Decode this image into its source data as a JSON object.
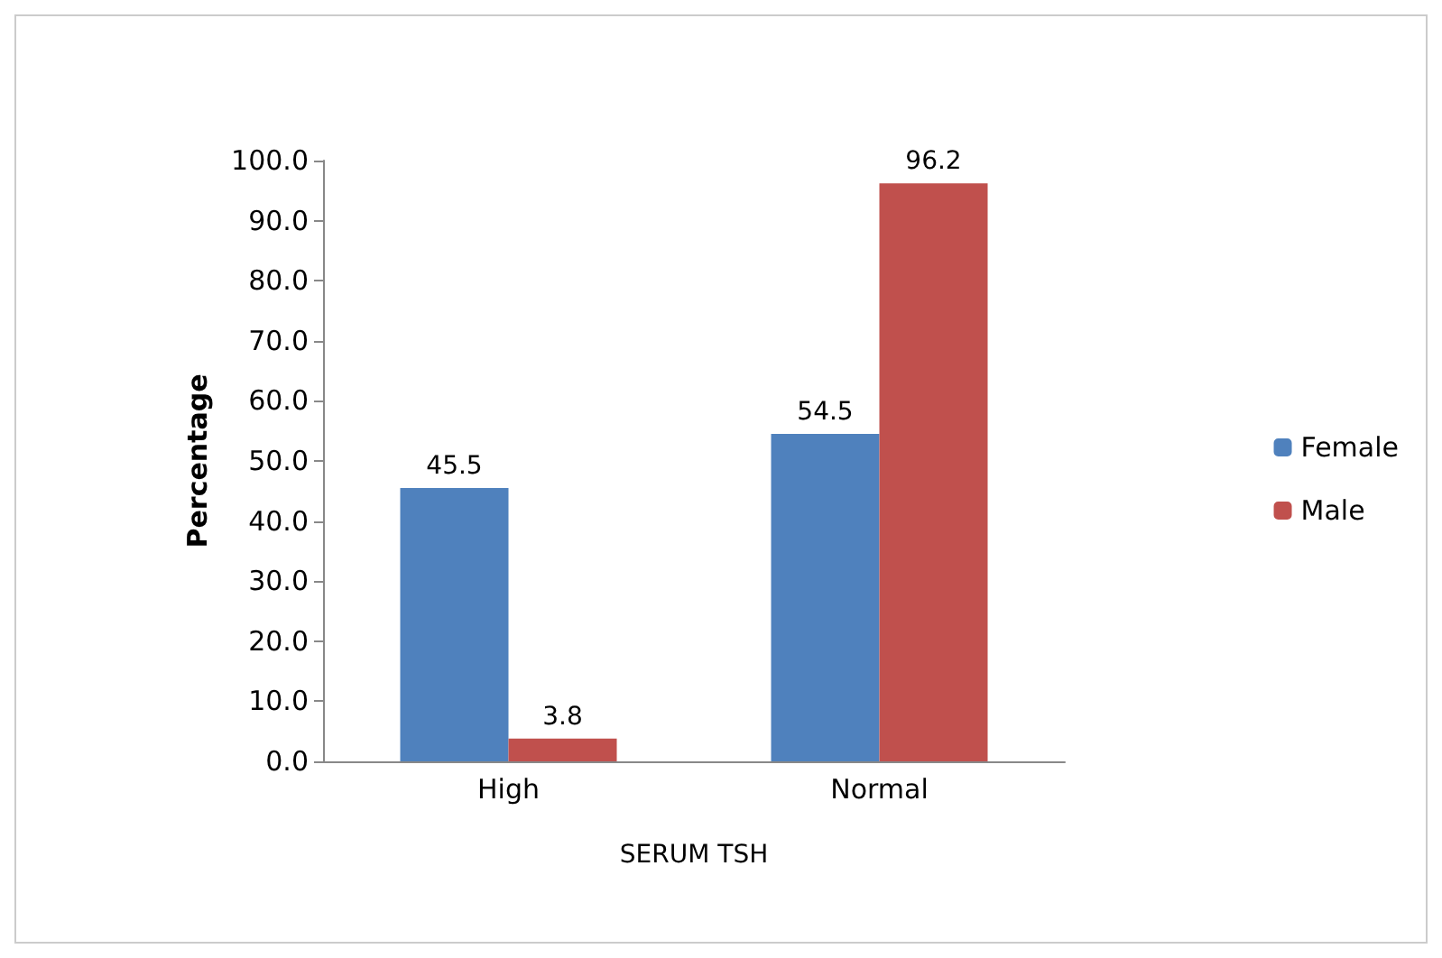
{
  "chart_data": {
    "type": "bar",
    "xlabel": "SERUM TSH",
    "ylabel": "Percentage",
    "categories": [
      "High",
      "Normal"
    ],
    "series": [
      {
        "name": "Female",
        "color": "#4f81bd",
        "values": [
          45.5,
          54.5
        ]
      },
      {
        "name": "Male",
        "color": "#c0504d",
        "values": [
          3.8,
          96.2
        ]
      }
    ],
    "ylim": [
      0,
      100
    ],
    "yticks": [
      {
        "value": 0,
        "label": "0.0"
      },
      {
        "value": 10,
        "label": "10.0"
      },
      {
        "value": 20,
        "label": "20.0"
      },
      {
        "value": 30,
        "label": "30.0"
      },
      {
        "value": 40,
        "label": "40.0"
      },
      {
        "value": 50,
        "label": "50.0"
      },
      {
        "value": 60,
        "label": "60.0"
      },
      {
        "value": 70,
        "label": "70.0"
      },
      {
        "value": 80,
        "label": "80.0"
      },
      {
        "value": 90,
        "label": "90.0"
      },
      {
        "value": 100,
        "label": "100.0"
      }
    ],
    "data_labels": true,
    "grid": false,
    "legend": "right"
  }
}
